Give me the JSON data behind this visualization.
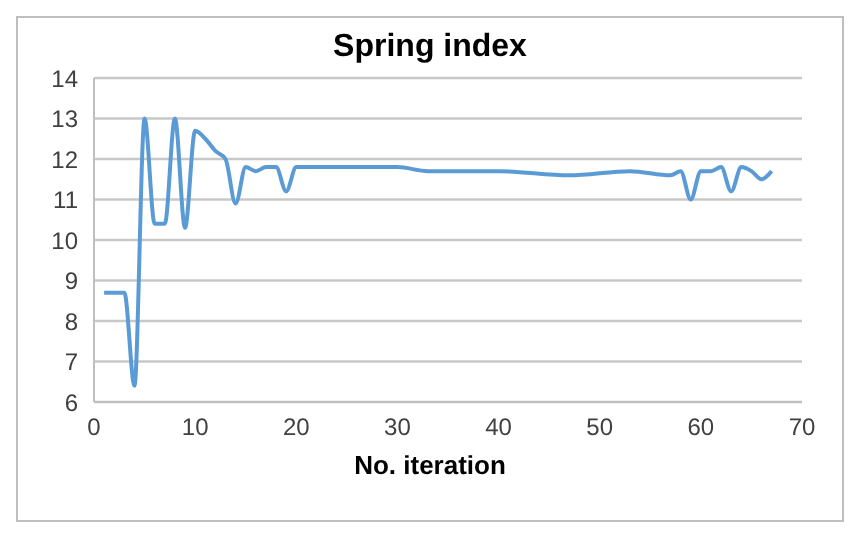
{
  "chart_data": {
    "type": "line",
    "title": "Spring index",
    "xlabel": "No. iteration",
    "x": [
      1,
      2,
      3,
      4,
      5,
      6,
      7,
      8,
      9,
      10,
      11,
      12,
      13,
      14,
      15,
      16,
      17,
      18,
      19,
      20,
      21,
      25,
      30,
      33,
      40,
      47,
      53,
      57,
      58,
      59,
      60,
      61,
      62,
      63,
      64,
      65,
      66,
      67
    ],
    "series": [
      {
        "color": "#5b9bd5",
        "values": [
          8.7,
          8.7,
          8.7,
          6.4,
          13.0,
          10.4,
          10.4,
          13.0,
          10.3,
          12.7,
          12.5,
          12.2,
          12.0,
          10.9,
          11.8,
          11.7,
          11.8,
          11.8,
          11.2,
          11.8,
          11.8,
          11.8,
          11.8,
          11.7,
          11.7,
          11.6,
          11.7,
          11.6,
          11.7,
          11.0,
          11.7,
          11.7,
          11.8,
          11.2,
          11.8,
          11.7,
          11.5,
          11.7
        ]
      }
    ],
    "xlim": [
      0,
      70
    ],
    "xticks": [
      0,
      10,
      20,
      30,
      40,
      50,
      60,
      70
    ],
    "ylim": [
      6,
      14
    ],
    "yticks": [
      6,
      7,
      8,
      9,
      10,
      11,
      12,
      13,
      14
    ],
    "grid": "y",
    "legend": false,
    "marker": "none",
    "line_style": "solid"
  }
}
